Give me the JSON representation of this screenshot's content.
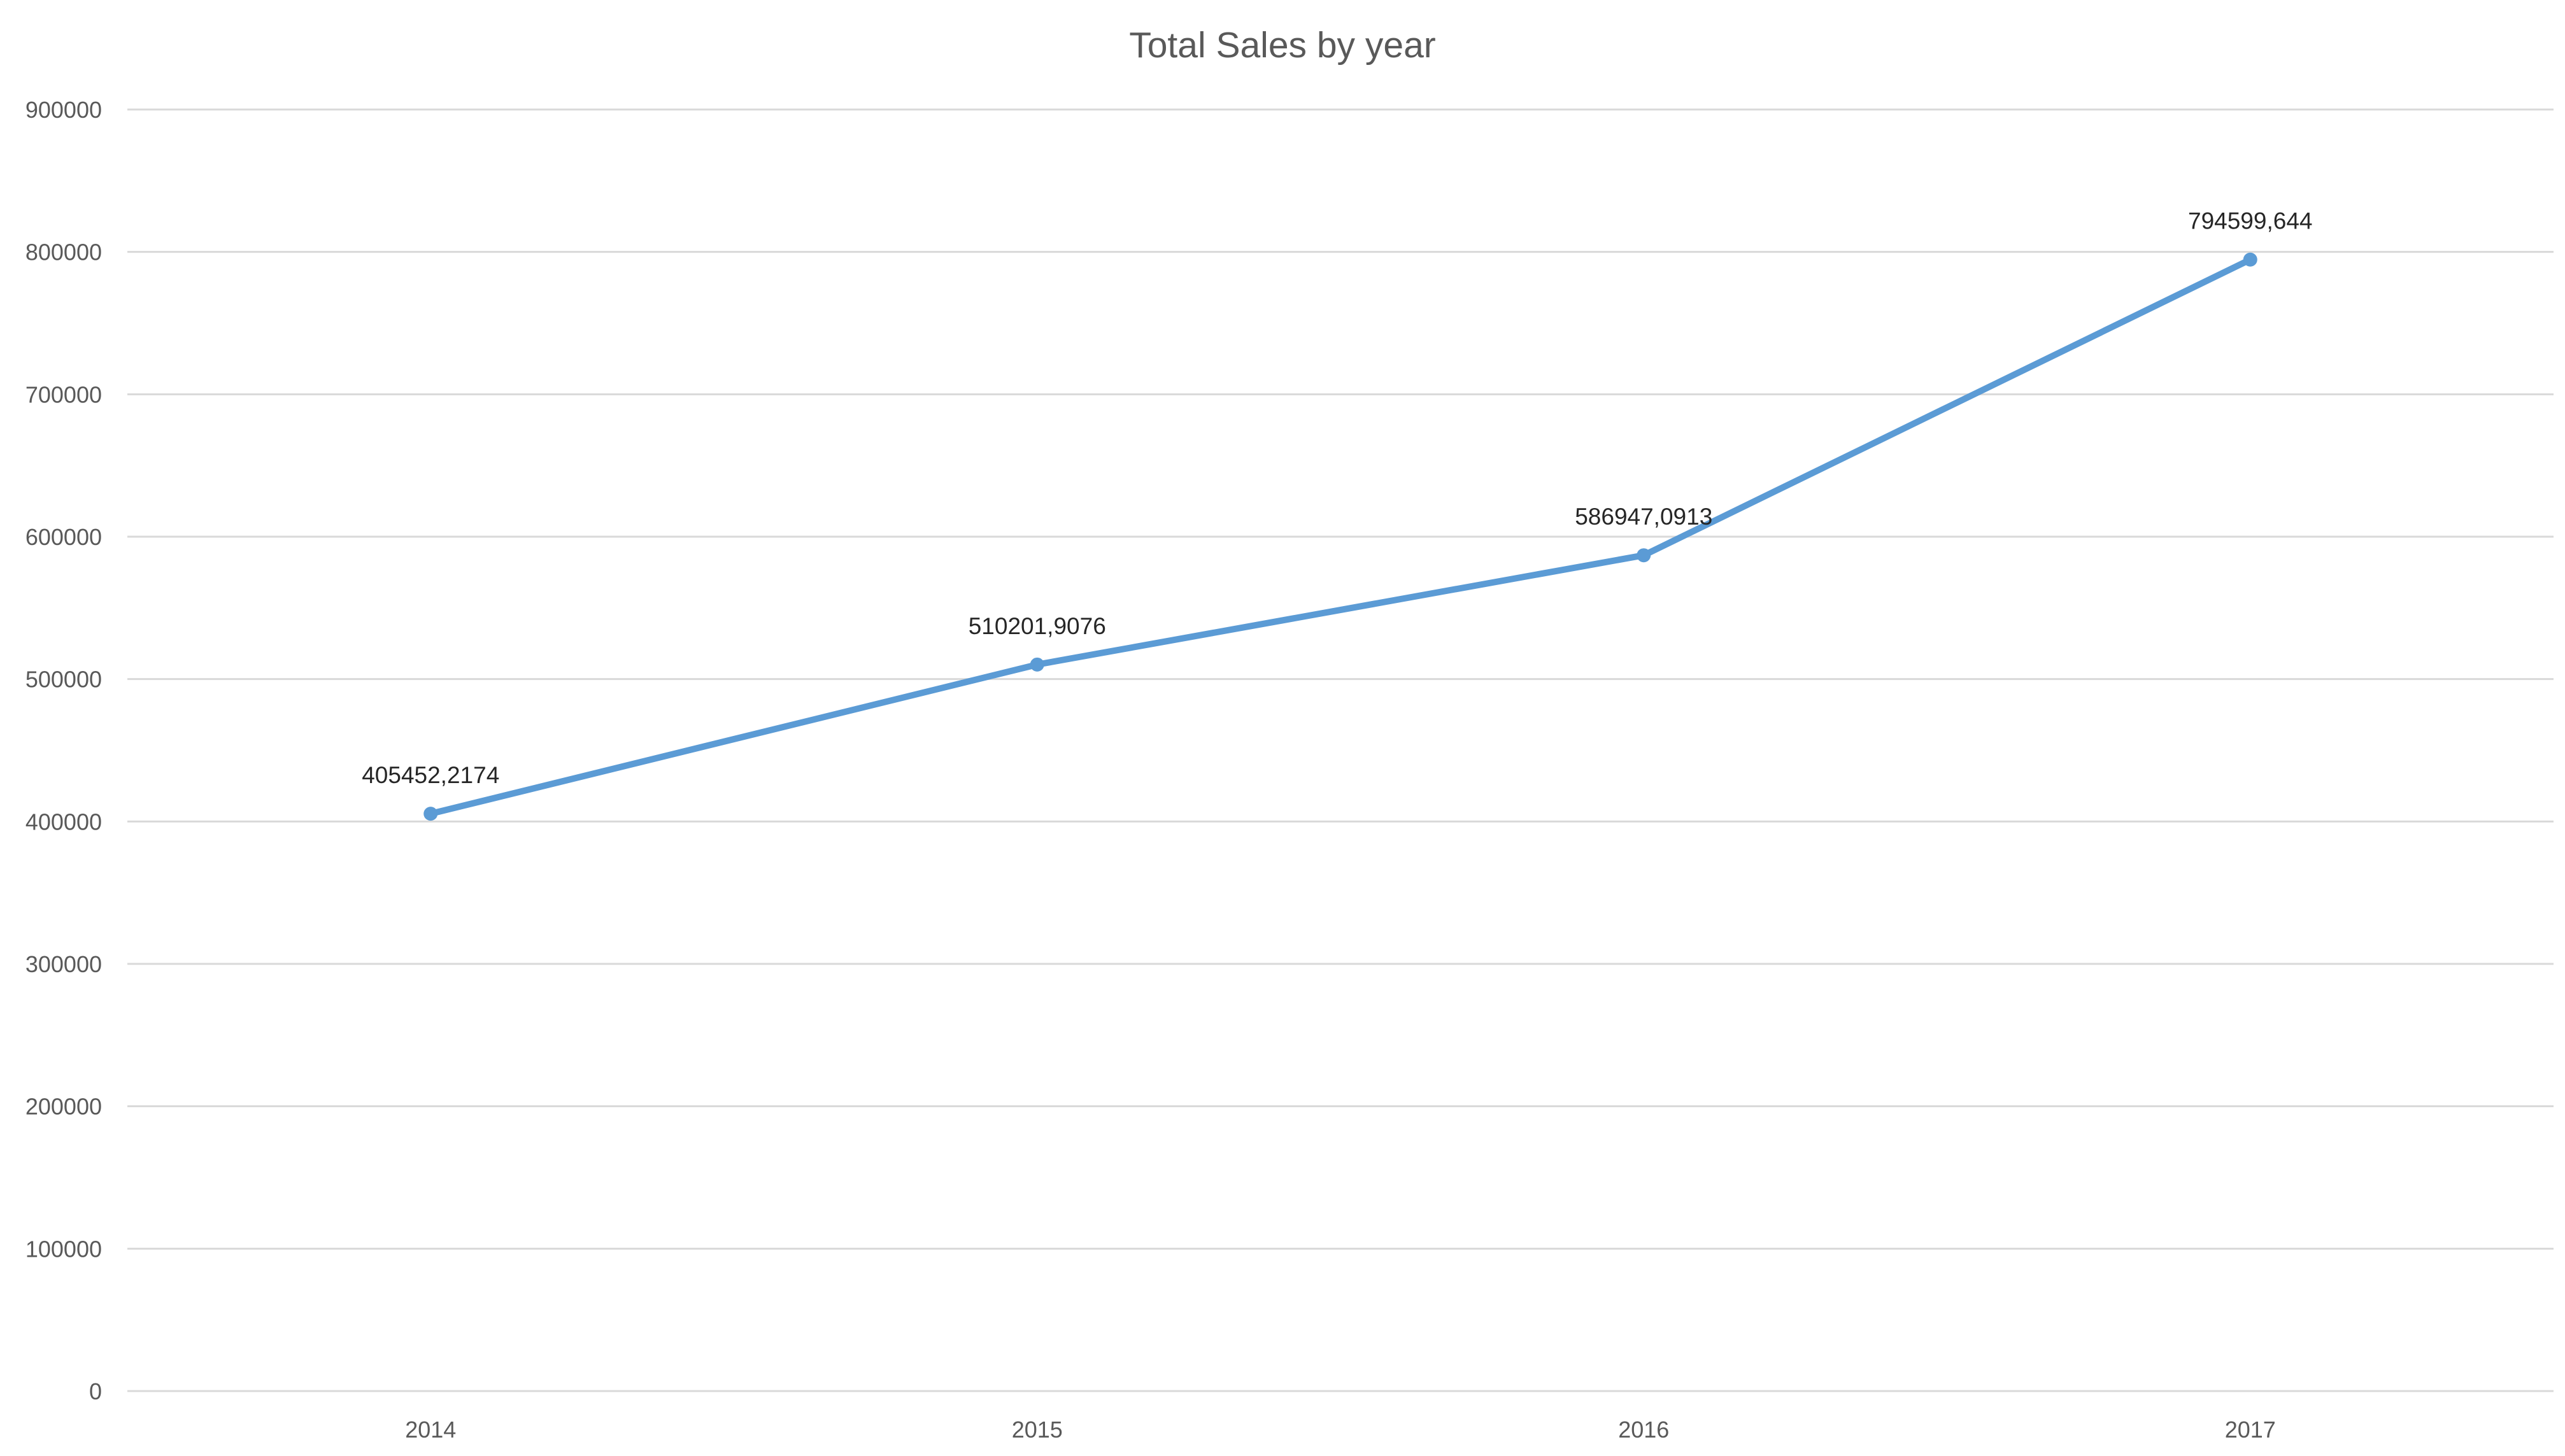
{
  "chart_data": {
    "type": "line",
    "title": "Total Sales by year",
    "xlabel": "",
    "ylabel": "",
    "categories": [
      "2014",
      "2015",
      "2016",
      "2017"
    ],
    "series": [
      {
        "values": [
          405452.2174,
          510201.9076,
          586947.0913,
          794599.644
        ],
        "labels": [
          "405452,2174",
          "510201,9076",
          "586947,0913",
          "794599,644"
        ],
        "color": "#5b9bd5"
      }
    ],
    "ylim": [
      0,
      900000
    ],
    "y_ticks": [
      "0",
      "100000",
      "200000",
      "300000",
      "400000",
      "500000",
      "600000",
      "700000",
      "800000",
      "900000"
    ],
    "grid": true,
    "legend": "none"
  }
}
